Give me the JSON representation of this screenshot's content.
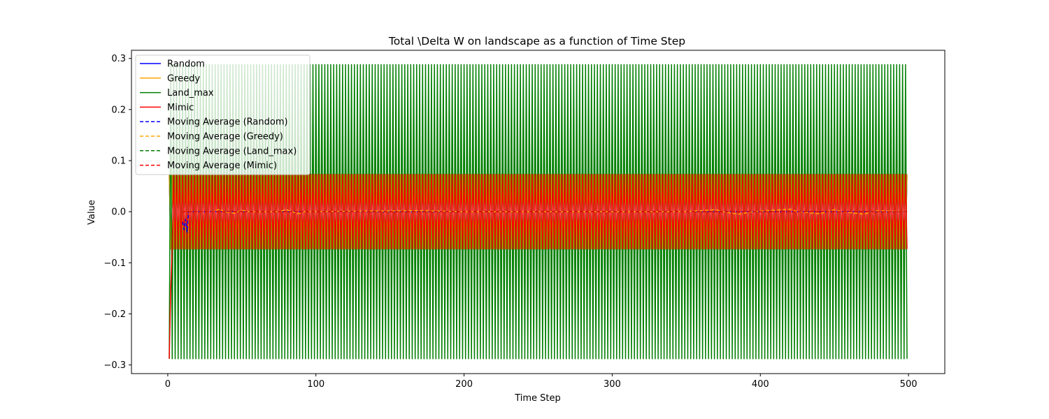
{
  "chart_data": {
    "type": "line",
    "title": "Total \\Delta W on landscape as a function of Time Step",
    "xlabel": "Time Step",
    "ylabel": "Value",
    "xlim": [
      -24.5,
      524.5
    ],
    "ylim": [
      -0.317,
      0.316
    ],
    "xticks": [
      0,
      100,
      200,
      300,
      400,
      500
    ],
    "xtick_labels": [
      "0",
      "100",
      "200",
      "300",
      "400",
      "500"
    ],
    "yticks": [
      -0.3,
      -0.2,
      -0.1,
      0.0,
      0.1,
      0.2,
      0.3
    ],
    "ytick_labels": [
      "−0.3",
      "−0.2",
      "−0.1",
      "0.0",
      "0.1",
      "0.2",
      "0.3"
    ],
    "grid": false,
    "legend_position": "top-left",
    "series": [
      {
        "name": "Land_max",
        "color": "#008000",
        "style": "solid",
        "description_values": {
          "t_range": [
            1,
            499
          ],
          "pattern": "alternating",
          "high": 0.288,
          "low": -0.288,
          "start": [
            [
              1,
              -0.288
            ],
            [
              2,
              0.288
            ]
          ]
        }
      },
      {
        "name": "Mimic",
        "color": "#ff0000",
        "style": "solid",
        "description_values": {
          "t_range": [
            1,
            499
          ],
          "pattern": "alternating",
          "high": 0.073,
          "low": -0.073,
          "start": [
            [
              1,
              -0.288
            ],
            [
              2,
              -0.15
            ],
            [
              3,
              -0.073
            ],
            [
              4,
              0.073
            ]
          ]
        }
      },
      {
        "name": "Greedy",
        "color": "#ffa500",
        "style": "solid",
        "description_values": {
          "t_range": [
            1,
            499
          ],
          "pattern": "alternating (hidden beneath Mimic)",
          "high": 0.073,
          "low": -0.073
        }
      },
      {
        "name": "Random",
        "color": "#0000ff",
        "style": "solid",
        "description_values": {
          "t_range": [
            1,
            499
          ],
          "pattern": "alternating (hidden beneath Mimic)",
          "high": 0.073,
          "low": -0.073
        }
      },
      {
        "name": "Moving Average (Random)",
        "color": "#0000ff",
        "style": "dashed",
        "x": [
          10,
          11,
          12,
          13,
          14,
          16,
          20,
          30,
          50,
          100,
          200,
          300,
          400,
          499
        ],
        "y": [
          -0.02,
          -0.035,
          -0.015,
          -0.04,
          0.0,
          0.0,
          0.0,
          0.0,
          0.0,
          0.0,
          0.0,
          0.0,
          0.0,
          0.0
        ]
      },
      {
        "name": "Moving Average (Greedy)",
        "color": "#ffa500",
        "style": "dashed",
        "x": [
          10,
          20,
          30,
          35,
          38,
          45,
          50,
          55,
          75,
          80,
          88,
          92,
          170,
          200,
          350,
          370,
          375,
          385,
          395,
          420,
          425,
          440,
          450,
          455,
          470,
          475,
          480,
          499
        ],
        "y": [
          0.0,
          0.0,
          0.0,
          0.005,
          0.0,
          -0.003,
          0.003,
          0.0,
          0.0,
          0.004,
          -0.004,
          0.0,
          0.002,
          0.0,
          0.0,
          0.004,
          0.0,
          -0.005,
          0.0,
          0.005,
          0.0,
          -0.004,
          0.004,
          0.0,
          -0.005,
          0.0,
          0.002,
          0.0
        ]
      },
      {
        "name": "Moving Average (Land_max)",
        "color": "#008000",
        "style": "dashed",
        "x": [
          10,
          499
        ],
        "y": [
          0.0,
          0.0
        ]
      },
      {
        "name": "Moving Average (Mimic)",
        "color": "#ff0000",
        "style": "dashed",
        "x": [
          10,
          100,
          200,
          300,
          400,
          499
        ],
        "y": [
          0.0,
          0.0,
          0.0,
          0.0,
          0.0,
          0.0
        ]
      }
    ],
    "legend_order": [
      "Random",
      "Greedy",
      "Land_max",
      "Mimic",
      "Moving Average (Random)",
      "Moving Average (Greedy)",
      "Moving Average (Land_max)",
      "Moving Average (Mimic)"
    ]
  }
}
